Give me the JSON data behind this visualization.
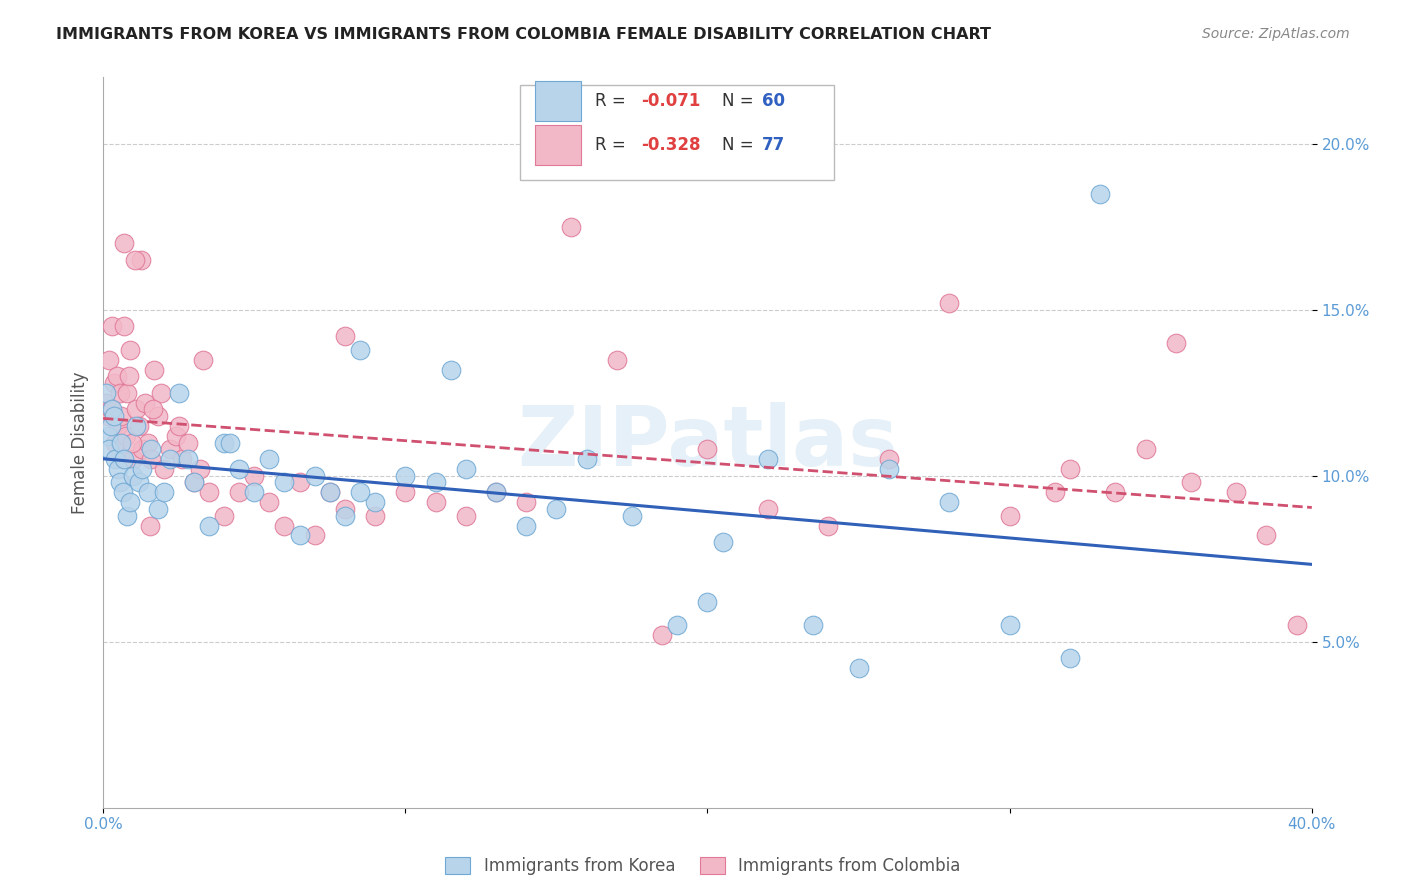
{
  "title": "IMMIGRANTS FROM KOREA VS IMMIGRANTS FROM COLOMBIA FEMALE DISABILITY CORRELATION CHART",
  "source": "Source: ZipAtlas.com",
  "ylabel": "Female Disability",
  "xlim": [
    0,
    40
  ],
  "ylim": [
    0,
    22
  ],
  "yticks": [
    5,
    10,
    15,
    20
  ],
  "ytick_labels": [
    "5.0%",
    "10.0%",
    "15.0%",
    "20.0%"
  ],
  "korea_color": "#b8d4ea",
  "korea_edge_color": "#6fa8d4",
  "colombia_color": "#f2b8c8",
  "colombia_edge_color": "#e07898",
  "korea_line_color": "#3060b8",
  "colombia_line_color": "#d05070",
  "korea_R": -0.071,
  "korea_N": 60,
  "colombia_R": -0.328,
  "colombia_N": 77,
  "watermark": "ZIPatlas",
  "korea_x": [
    0.1,
    0.15,
    0.2,
    0.25,
    0.3,
    0.35,
    0.4,
    0.5,
    0.55,
    0.6,
    0.65,
    0.7,
    0.8,
    0.9,
    1.0,
    1.1,
    1.2,
    1.3,
    1.5,
    1.6,
    1.8,
    2.0,
    2.2,
    2.5,
    2.8,
    3.0,
    3.5,
    4.0,
    4.5,
    5.0,
    5.5,
    6.0,
    6.5,
    7.0,
    8.0,
    8.5,
    9.0,
    10.0,
    11.0,
    12.0,
    13.0,
    14.0,
    15.0,
    16.0,
    17.5,
    19.0,
    20.0,
    22.0,
    23.5,
    25.0,
    26.0,
    28.0,
    30.0,
    32.0,
    33.0,
    11.5,
    8.5,
    7.5,
    4.2,
    20.5
  ],
  "korea_y": [
    12.5,
    11.2,
    10.8,
    11.5,
    12.0,
    11.8,
    10.5,
    10.2,
    9.8,
    11.0,
    9.5,
    10.5,
    8.8,
    9.2,
    10.0,
    11.5,
    9.8,
    10.2,
    9.5,
    10.8,
    9.0,
    9.5,
    10.5,
    12.5,
    10.5,
    9.8,
    8.5,
    11.0,
    10.2,
    9.5,
    10.5,
    9.8,
    8.2,
    10.0,
    8.8,
    13.8,
    9.2,
    10.0,
    9.8,
    10.2,
    9.5,
    8.5,
    9.0,
    10.5,
    8.8,
    5.5,
    6.2,
    10.5,
    5.5,
    4.2,
    10.2,
    9.2,
    5.5,
    4.5,
    18.5,
    13.2,
    9.5,
    9.5,
    11.0,
    8.0
  ],
  "colombia_x": [
    0.1,
    0.15,
    0.2,
    0.25,
    0.3,
    0.35,
    0.4,
    0.45,
    0.5,
    0.55,
    0.6,
    0.65,
    0.7,
    0.75,
    0.8,
    0.85,
    0.9,
    1.0,
    1.1,
    1.2,
    1.3,
    1.4,
    1.5,
    1.6,
    1.7,
    1.8,
    1.9,
    2.0,
    2.2,
    2.4,
    2.6,
    2.8,
    3.0,
    3.2,
    3.5,
    4.0,
    4.5,
    5.0,
    5.5,
    6.0,
    6.5,
    7.0,
    7.5,
    8.0,
    9.0,
    10.0,
    11.0,
    12.0,
    13.0,
    14.0,
    15.5,
    17.0,
    18.5,
    20.0,
    22.0,
    24.0,
    26.0,
    28.0,
    30.0,
    31.5,
    32.0,
    33.5,
    34.5,
    35.5,
    36.0,
    37.5,
    38.5,
    39.5,
    1.25,
    0.95,
    1.05,
    1.65,
    0.7,
    1.55,
    3.3,
    2.5,
    8.0
  ],
  "colombia_y": [
    12.2,
    11.8,
    13.5,
    12.0,
    14.5,
    12.8,
    11.0,
    13.0,
    11.5,
    12.5,
    11.8,
    10.5,
    14.5,
    11.2,
    12.5,
    13.0,
    13.8,
    10.5,
    12.0,
    11.5,
    10.8,
    12.2,
    11.0,
    10.5,
    13.2,
    11.8,
    12.5,
    10.2,
    10.8,
    11.2,
    10.5,
    11.0,
    9.8,
    10.2,
    9.5,
    8.8,
    9.5,
    10.0,
    9.2,
    8.5,
    9.8,
    8.2,
    9.5,
    9.0,
    8.8,
    9.5,
    9.2,
    8.8,
    9.5,
    9.2,
    17.5,
    13.5,
    5.2,
    10.8,
    9.0,
    8.5,
    10.5,
    15.2,
    8.8,
    9.5,
    10.2,
    9.5,
    10.8,
    14.0,
    9.8,
    9.5,
    8.2,
    5.5,
    16.5,
    11.0,
    16.5,
    12.0,
    17.0,
    8.5,
    13.5,
    11.5,
    14.2
  ]
}
